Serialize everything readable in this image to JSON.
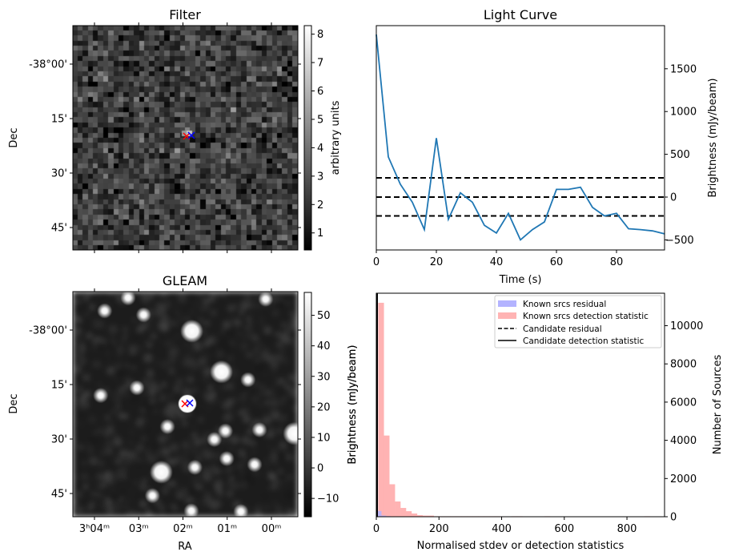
{
  "filter_panel": {
    "title": "Filter",
    "ylabel": "Dec",
    "dec_ticks": [
      {
        "label": "-38°00'",
        "dec_arcmin": 0
      },
      {
        "label": "15'",
        "dec_arcmin": 15
      },
      {
        "label": "30'",
        "dec_arcmin": 30
      },
      {
        "label": "45'",
        "dec_arcmin": 45
      }
    ],
    "colorbar": {
      "label": "arbitrary units",
      "range": [
        0.4,
        8.3
      ],
      "ticks": [
        "1",
        "2",
        "3",
        "4",
        "5",
        "6",
        "7",
        "8"
      ]
    },
    "colormap": "gray"
  },
  "gleam_panel": {
    "title": "GLEAM",
    "xlabel": "RA",
    "ylabel": "Dec",
    "dec_ticks": [
      {
        "label": "-38°00'",
        "dec_arcmin": 0
      },
      {
        "label": "15'",
        "dec_arcmin": 15
      },
      {
        "label": "30'",
        "dec_arcmin": 30
      },
      {
        "label": "45'",
        "dec_arcmin": 45
      }
    ],
    "ra_ticks": [
      {
        "label": "3ʰ04ᵐ",
        "ra_min": 4
      },
      {
        "label": "03ᵐ",
        "ra_min": 3
      },
      {
        "label": "02ᵐ",
        "ra_min": 2
      },
      {
        "label": "01ᵐ",
        "ra_min": 1
      },
      {
        "label": "00ᵐ",
        "ra_min": 0
      }
    ],
    "colorbar": {
      "label": "Brightness (mJy/beam)",
      "range": [
        -16,
        57.5
      ],
      "ticks": [
        "−10",
        "0",
        "10",
        "20",
        "30",
        "40",
        "50"
      ],
      "tick_values": [
        -10,
        0,
        10,
        20,
        30,
        40,
        50
      ]
    },
    "sources_radec": [
      [
        1.8,
        -38.005
      ],
      [
        0.53,
        -38.228
      ],
      [
        1.13,
        -38.192
      ],
      [
        3.86,
        -38.3
      ],
      [
        3.04,
        -38.265
      ],
      [
        2.35,
        -38.443
      ],
      [
        1.04,
        -38.463
      ],
      [
        0.27,
        -38.458
      ],
      [
        -0.52,
        -38.475
      ],
      [
        1.29,
        -38.502
      ],
      [
        1.01,
        -38.59
      ],
      [
        0.38,
        -38.617
      ],
      [
        2.49,
        -38.652
      ],
      [
        1.73,
        -38.63
      ],
      [
        2.69,
        -38.76
      ],
      [
        1.81,
        -38.83
      ],
      [
        0.69,
        -38.833
      ],
      [
        0.13,
        -37.858
      ],
      [
        3.24,
        -37.852
      ],
      [
        2.89,
        -37.93
      ],
      [
        3.77,
        -37.912
      ]
    ]
  },
  "markers": {
    "red_color": "#ff0000",
    "blue_color": "#0000ff",
    "symbol": "x"
  },
  "chart_data": [
    {
      "type": "line",
      "title": "Light Curve",
      "xlabel": "Time (s)",
      "ylabel": "Brightness (mJy/beam)",
      "xlim": [
        0,
        96
      ],
      "ylim": [
        -618,
        2004
      ],
      "x_ticks": [
        0,
        20,
        40,
        60,
        80
      ],
      "y_ticks": [
        -500,
        0,
        500,
        1000,
        1500
      ],
      "y_tick_labels": [
        "−500",
        "0",
        "500",
        "1000",
        "1500"
      ],
      "series": [
        {
          "name": "light curve",
          "color": "#1f77b4",
          "x": [
            0,
            4,
            8,
            12,
            16,
            20,
            24,
            28,
            32,
            36,
            40,
            44,
            48,
            52,
            56,
            60,
            64,
            68,
            72,
            76,
            80,
            84,
            88,
            92,
            96
          ],
          "y": [
            1900,
            470,
            150,
            -60,
            -380,
            690,
            -260,
            50,
            -60,
            -330,
            -420,
            -190,
            -500,
            -380,
            -290,
            90,
            90,
            115,
            -120,
            -220,
            -190,
            -370,
            -380,
            -395,
            -430
          ]
        }
      ],
      "hlines": [
        225,
        0,
        -220
      ],
      "hline_style": "dashed"
    },
    {
      "type": "bar",
      "title": "",
      "xlabel": "Normalised stdev or detection statistics",
      "ylabel_left": "Brightness (mJy/beam)",
      "ylabel_right": "Number of Sources",
      "xlim": [
        0,
        920
      ],
      "ylim": [
        0,
        11700
      ],
      "x_ticks": [
        0,
        200,
        400,
        600,
        800
      ],
      "y_ticks": [
        0,
        2000,
        4000,
        6000,
        8000,
        10000
      ],
      "bin_start": 6,
      "bin_width": 17.7,
      "series": [
        {
          "name": "Known srcs residual",
          "color": "#b3b3ff",
          "values": [
            300,
            60,
            30
          ]
        },
        {
          "name": "Known srcs detection statistic",
          "color": "#ffb3b3",
          "values": [
            11200,
            4250,
            1700,
            800,
            460,
            290,
            170,
            85,
            60,
            60,
            25,
            25,
            25,
            25,
            25,
            25,
            25,
            25,
            25,
            25,
            25,
            25,
            0,
            0,
            25,
            25,
            0,
            0,
            0,
            0,
            25,
            0,
            0,
            0,
            0,
            0,
            0,
            0,
            0,
            0,
            0,
            0,
            0,
            0,
            0,
            0,
            0,
            0,
            25
          ]
        }
      ],
      "vlines": [
        {
          "name": "Candidate residual",
          "x": 1.5,
          "style": "dashed"
        },
        {
          "name": "Candidate detection statistic",
          "x": 2.5,
          "style": "solid"
        }
      ],
      "legend": {
        "placement": "top-right",
        "entries": [
          "Known srcs residual",
          "Known srcs detection statistic",
          "Candidate residual",
          "Candidate detection statistic"
        ]
      }
    }
  ]
}
